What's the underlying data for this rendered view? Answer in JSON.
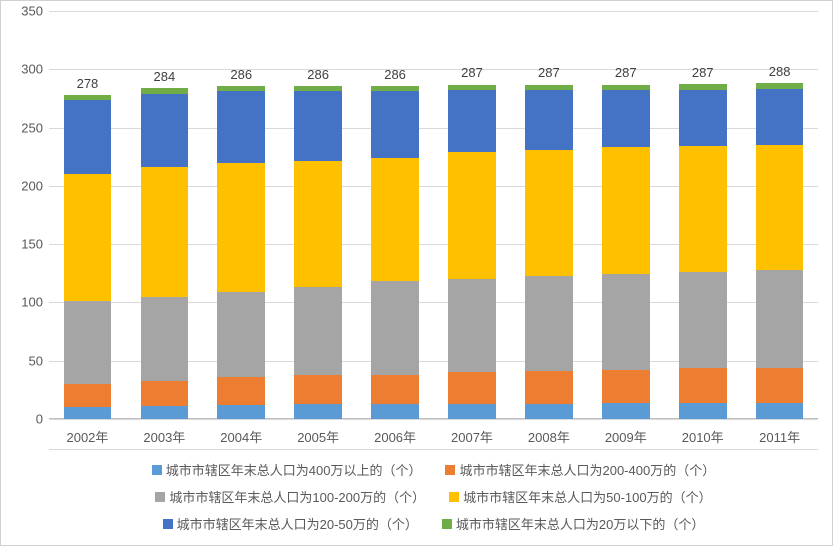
{
  "chart": {
    "type": "stacked-bar",
    "background_color": "#ffffff",
    "grid_color": "#d9d9d9",
    "axis_color": "#bfbfbf",
    "text_color": "#595959",
    "title_fontsize": 13,
    "label_fontsize": 13,
    "ylim": [
      0,
      350
    ],
    "ytick_step": 50,
    "yticks": [
      0,
      50,
      100,
      150,
      200,
      250,
      300,
      350
    ],
    "categories": [
      "2002年",
      "2003年",
      "2004年",
      "2005年",
      "2006年",
      "2007年",
      "2008年",
      "2009年",
      "2010年",
      "2011年"
    ],
    "series": [
      {
        "key": "s1",
        "label": "城市市辖区年末总人口为400万以上的（个）",
        "color": "#5b9bd5",
        "values": [
          10,
          11,
          12,
          13,
          13,
          13,
          13,
          14,
          14,
          14
        ]
      },
      {
        "key": "s2",
        "label": "城市市辖区年末总人口为200-400万的（个）",
        "color": "#ed7d31",
        "values": [
          20,
          22,
          24,
          25,
          25,
          27,
          28,
          28,
          30,
          30
        ]
      },
      {
        "key": "s3",
        "label": "城市市辖区年末总人口为100-200万的（个）",
        "color": "#a5a5a5",
        "values": [
          71,
          72,
          73,
          75,
          80,
          80,
          82,
          82,
          82,
          84
        ]
      },
      {
        "key": "s4",
        "label": "城市市辖区年末总人口为50-100万的（个）",
        "color": "#ffc000",
        "values": [
          109,
          111,
          111,
          108,
          106,
          109,
          108,
          109,
          108,
          107
        ]
      },
      {
        "key": "s5",
        "label": "城市市辖区年末总人口为20-50万的（个）",
        "color": "#4472c4",
        "values": [
          64,
          63,
          61,
          60,
          57,
          53,
          51,
          49,
          48,
          48
        ]
      },
      {
        "key": "s6",
        "label": "城市市辖区年末总人口为20万以下的（个）",
        "color": "#70ad47",
        "values": [
          4,
          5,
          5,
          5,
          5,
          5,
          5,
          5,
          5,
          5
        ]
      }
    ],
    "totals": [
      278,
      284,
      286,
      286,
      286,
      287,
      287,
      287,
      287,
      288
    ],
    "bar_width_ratio": 0.62
  }
}
